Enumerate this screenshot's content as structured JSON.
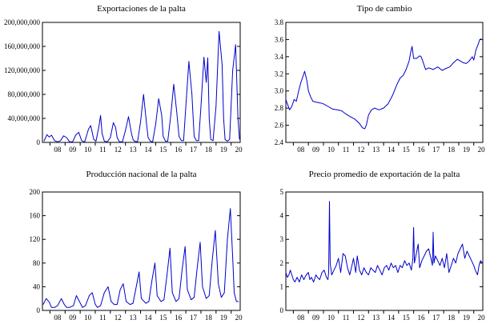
{
  "chart_data": [
    {
      "type": "line",
      "title": "Exportaciones de la palta",
      "xlabel": "",
      "ylabel": "",
      "xlim": [
        2007.5,
        2020.6
      ],
      "ylim": [
        0,
        200000000
      ],
      "y_ticks": [
        0,
        40000000,
        80000000,
        120000000,
        160000000,
        200000000
      ],
      "y_tick_labels": [
        "0",
        "40,000,000",
        "80,000,000",
        "120,000,000",
        "160,000,000",
        "200,000,000"
      ],
      "x_ticks": [
        2008,
        2009,
        2010,
        2011,
        2012,
        2013,
        2014,
        2015,
        2016,
        2017,
        2018,
        2019,
        2020
      ],
      "x_tick_labels": [
        "08",
        "09",
        "10",
        "11",
        "12",
        "13",
        "14",
        "15",
        "16",
        "17",
        "18",
        "19",
        "20"
      ],
      "color": "#0000cc",
      "grid": false,
      "series": [
        {
          "x": [
            2007.6,
            2007.8,
            2007.95,
            2008.1,
            2008.3,
            2008.5,
            2008.7,
            2008.9,
            2009.1,
            2009.3,
            2009.5,
            2009.7,
            2009.9,
            2010.1,
            2010.3,
            2010.55,
            2010.7,
            2010.9,
            2011.05,
            2011.25,
            2011.35,
            2011.45,
            2011.6,
            2011.8,
            2012.0,
            2012.2,
            2012.35,
            2012.45,
            2012.6,
            2012.8,
            2013.0,
            2013.2,
            2013.4,
            2013.5,
            2013.6,
            2013.8,
            2014.0,
            2014.2,
            2014.4,
            2014.5,
            2014.65,
            2014.8,
            2015.0,
            2015.2,
            2015.4,
            2015.5,
            2015.65,
            2015.8,
            2016.0,
            2016.2,
            2016.4,
            2016.55,
            2016.7,
            2016.85,
            2017.0,
            2017.2,
            2017.4,
            2017.55,
            2017.7,
            2017.85,
            2018.0,
            2018.2,
            2018.35,
            2018.45,
            2018.55,
            2018.65,
            2018.8,
            2019.0,
            2019.2,
            2019.4,
            2019.5,
            2019.6,
            2019.75,
            2019.9,
            2020.1,
            2020.3,
            2020.45,
            2020.55
          ],
          "values": [
            2000000,
            13000000,
            9000000,
            12000000,
            3000000,
            1000000,
            3000000,
            11000000,
            8000000,
            1000000,
            1000000,
            12000000,
            17000000,
            3000000,
            1000000,
            22000000,
            28000000,
            5000000,
            2000000,
            28000000,
            45000000,
            15000000,
            2000000,
            1000000,
            8000000,
            33000000,
            25000000,
            8000000,
            1000000,
            1000000,
            20000000,
            43000000,
            15000000,
            5000000,
            2000000,
            1000000,
            35000000,
            80000000,
            30000000,
            8000000,
            2000000,
            1000000,
            30000000,
            73000000,
            45000000,
            10000000,
            2000000,
            2000000,
            45000000,
            97000000,
            50000000,
            10000000,
            3000000,
            3000000,
            60000000,
            135000000,
            80000000,
            10000000,
            3000000,
            3000000,
            60000000,
            142000000,
            100000000,
            141000000,
            40000000,
            5000000,
            3000000,
            60000000,
            185000000,
            130000000,
            40000000,
            5000000,
            2000000,
            5000000,
            120000000,
            163000000,
            40000000,
            5000000
          ]
        }
      ]
    },
    {
      "type": "line",
      "title": "Tipo de cambio",
      "xlabel": "",
      "ylabel": "",
      "xlim": [
        2007.5,
        2020.6
      ],
      "ylim": [
        2.4,
        3.8
      ],
      "y_ticks": [
        2.4,
        2.6,
        2.8,
        3.0,
        3.2,
        3.4,
        3.6,
        3.8
      ],
      "y_tick_labels": [
        "2.4",
        "2.6",
        "2.8",
        "3.0",
        "3.2",
        "3.4",
        "3.6",
        "3.8"
      ],
      "x_ticks": [
        2008,
        2009,
        2010,
        2011,
        2012,
        2013,
        2014,
        2015,
        2016,
        2017,
        2018,
        2019,
        2020
      ],
      "x_tick_labels": [
        "08",
        "09",
        "10",
        "11",
        "12",
        "13",
        "14",
        "15",
        "16",
        "17",
        "18",
        "19",
        "20"
      ],
      "color": "#0000cc",
      "grid": false,
      "series": [
        {
          "x": [
            2007.5,
            2007.6,
            2007.75,
            2007.9,
            2008.05,
            2008.2,
            2008.35,
            2008.5,
            2008.6,
            2008.75,
            2008.9,
            2009.0,
            2009.15,
            2009.3,
            2009.5,
            2009.8,
            2010.0,
            2010.3,
            2010.6,
            2010.9,
            2011.2,
            2011.5,
            2011.8,
            2012.1,
            2012.4,
            2012.6,
            2012.75,
            2012.85,
            2013.0,
            2013.2,
            2013.4,
            2013.7,
            2014.0,
            2014.3,
            2014.6,
            2014.9,
            2015.1,
            2015.3,
            2015.5,
            2015.7,
            2015.8,
            2015.9,
            2016.0,
            2016.2,
            2016.4,
            2016.5,
            2016.6,
            2016.8,
            2017.0,
            2017.3,
            2017.6,
            2017.9,
            2018.1,
            2018.4,
            2018.6,
            2018.9,
            2019.1,
            2019.3,
            2019.5,
            2019.7,
            2019.9,
            2020.0,
            2020.15,
            2020.3,
            2020.4,
            2020.5
          ],
          "values": [
            2.9,
            2.85,
            2.78,
            2.82,
            2.9,
            2.88,
            3.0,
            3.1,
            3.15,
            3.23,
            3.12,
            3.0,
            2.93,
            2.88,
            2.87,
            2.86,
            2.85,
            2.82,
            2.79,
            2.78,
            2.77,
            2.73,
            2.7,
            2.67,
            2.62,
            2.57,
            2.56,
            2.6,
            2.72,
            2.78,
            2.8,
            2.78,
            2.8,
            2.85,
            2.95,
            3.08,
            3.15,
            3.18,
            3.25,
            3.35,
            3.45,
            3.52,
            3.38,
            3.38,
            3.41,
            3.4,
            3.35,
            3.25,
            3.27,
            3.25,
            3.28,
            3.24,
            3.26,
            3.28,
            3.32,
            3.37,
            3.35,
            3.33,
            3.32,
            3.35,
            3.4,
            3.36,
            3.48,
            3.55,
            3.6,
            3.61
          ]
        }
      ]
    },
    {
      "type": "line",
      "title": "Producción nacional de la palta",
      "xlabel": "",
      "ylabel": "",
      "xlim": [
        2007.5,
        2020.6
      ],
      "ylim": [
        0,
        200
      ],
      "y_ticks": [
        0,
        40,
        80,
        120,
        160,
        200
      ],
      "y_tick_labels": [
        "0",
        "40",
        "80",
        "120",
        "160",
        "200"
      ],
      "x_ticks": [
        2008,
        2009,
        2010,
        2011,
        2012,
        2013,
        2014,
        2015,
        2016,
        2017,
        2018,
        2019,
        2020
      ],
      "x_tick_labels": [
        "08",
        "09",
        "10",
        "11",
        "12",
        "13",
        "14",
        "15",
        "16",
        "17",
        "18",
        "19",
        "20"
      ],
      "color": "#0000cc",
      "grid": false,
      "series": [
        {
          "x": [
            2007.55,
            2007.75,
            2007.95,
            2008.1,
            2008.3,
            2008.5,
            2008.75,
            2008.95,
            2009.1,
            2009.3,
            2009.55,
            2009.75,
            2009.95,
            2010.15,
            2010.35,
            2010.6,
            2010.8,
            2011.0,
            2011.15,
            2011.35,
            2011.6,
            2011.85,
            2012.05,
            2012.25,
            2012.45,
            2012.65,
            2012.85,
            2013.05,
            2013.3,
            2013.5,
            2013.7,
            2013.9,
            2014.05,
            2014.35,
            2014.55,
            2014.75,
            2014.95,
            2015.1,
            2015.35,
            2015.55,
            2015.75,
            2015.95,
            2016.1,
            2016.35,
            2016.55,
            2016.75,
            2016.95,
            2017.1,
            2017.35,
            2017.55,
            2017.75,
            2017.95,
            2018.1,
            2018.35,
            2018.55,
            2018.75,
            2018.95,
            2019.15,
            2019.35,
            2019.55,
            2019.75,
            2019.95,
            2020.1,
            2020.2,
            2020.35,
            2020.5
          ],
          "values": [
            10,
            20,
            14,
            5,
            5,
            8,
            20,
            10,
            5,
            5,
            8,
            25,
            15,
            5,
            8,
            25,
            30,
            10,
            5,
            8,
            30,
            40,
            15,
            10,
            10,
            35,
            45,
            15,
            10,
            12,
            38,
            65,
            20,
            12,
            15,
            50,
            80,
            25,
            15,
            18,
            60,
            105,
            30,
            15,
            20,
            68,
            108,
            35,
            18,
            22,
            72,
            115,
            40,
            20,
            25,
            85,
            135,
            45,
            22,
            30,
            120,
            172,
            90,
            30,
            15,
            15
          ]
        }
      ]
    },
    {
      "type": "line",
      "title": "Precio promedio de exportación de la palta",
      "xlabel": "",
      "ylabel": "",
      "xlim": [
        2007.5,
        2020.6
      ],
      "ylim": [
        0,
        5
      ],
      "y_ticks": [
        0,
        1,
        2,
        3,
        4,
        5
      ],
      "y_tick_labels": [
        "0",
        "1",
        "2",
        "3",
        "4",
        "5"
      ],
      "x_ticks": [
        2008,
        2009,
        2010,
        2011,
        2012,
        2013,
        2014,
        2015,
        2016,
        2017,
        2018,
        2019,
        2020
      ],
      "x_tick_labels": [
        "08",
        "09",
        "10",
        "11",
        "12",
        "13",
        "14",
        "15",
        "16",
        "17",
        "18",
        "19",
        "20"
      ],
      "color": "#0000cc",
      "grid": false,
      "series": [
        {
          "x": [
            2007.5,
            2007.6,
            2007.7,
            2007.8,
            2007.9,
            2008.0,
            2008.1,
            2008.25,
            2008.4,
            2008.55,
            2008.7,
            2008.85,
            2009.0,
            2009.1,
            2009.2,
            2009.35,
            2009.5,
            2009.6,
            2009.75,
            2009.9,
            2010.05,
            2010.2,
            2010.3,
            2010.35,
            2010.4,
            2010.45,
            2010.55,
            2010.7,
            2010.85,
            2011.0,
            2011.15,
            2011.3,
            2011.45,
            2011.6,
            2011.75,
            2011.9,
            2012.0,
            2012.15,
            2012.25,
            2012.4,
            2012.55,
            2012.7,
            2012.85,
            2013.0,
            2013.15,
            2013.3,
            2013.45,
            2013.6,
            2013.75,
            2013.9,
            2014.05,
            2014.2,
            2014.35,
            2014.5,
            2014.65,
            2014.8,
            2014.95,
            2015.1,
            2015.25,
            2015.4,
            2015.55,
            2015.7,
            2015.85,
            2015.95,
            2016.0,
            2016.05,
            2016.15,
            2016.3,
            2016.4,
            2016.55,
            2016.7,
            2016.85,
            2017.0,
            2017.15,
            2017.25,
            2017.3,
            2017.35,
            2017.45,
            2017.6,
            2017.75,
            2017.9,
            2018.05,
            2018.2,
            2018.35,
            2018.5,
            2018.65,
            2018.8,
            2018.95,
            2019.1,
            2019.25,
            2019.4,
            2019.55,
            2019.7,
            2019.85,
            2020.0,
            2020.1,
            2020.25,
            2020.35,
            2020.45,
            2020.55
          ],
          "values": [
            1.6,
            1.4,
            1.5,
            1.7,
            1.5,
            1.3,
            1.2,
            1.4,
            1.2,
            1.5,
            1.3,
            1.5,
            1.6,
            1.3,
            1.4,
            1.2,
            1.5,
            1.4,
            1.3,
            1.6,
            1.7,
            1.4,
            1.3,
            1.6,
            4.6,
            2.0,
            1.5,
            1.7,
            1.9,
            2.2,
            1.6,
            2.4,
            2.3,
            1.8,
            1.5,
            1.9,
            2.2,
            1.6,
            2.3,
            1.7,
            1.5,
            1.8,
            1.6,
            1.5,
            1.8,
            1.7,
            1.6,
            1.9,
            1.7,
            1.5,
            1.8,
            1.9,
            1.7,
            2.0,
            1.8,
            1.9,
            1.6,
            1.9,
            1.8,
            2.1,
            1.9,
            2.0,
            1.7,
            2.2,
            3.5,
            2.0,
            2.3,
            2.8,
            1.8,
            2.1,
            2.3,
            2.5,
            2.6,
            2.2,
            1.9,
            3.3,
            2.0,
            2.3,
            2.1,
            1.9,
            2.2,
            1.8,
            2.4,
            1.6,
            1.9,
            2.2,
            2.0,
            2.4,
            2.6,
            2.8,
            2.2,
            2.5,
            2.3,
            2.1,
            1.9,
            1.7,
            1.5,
            1.9,
            2.1,
            2.0
          ]
        }
      ]
    }
  ]
}
